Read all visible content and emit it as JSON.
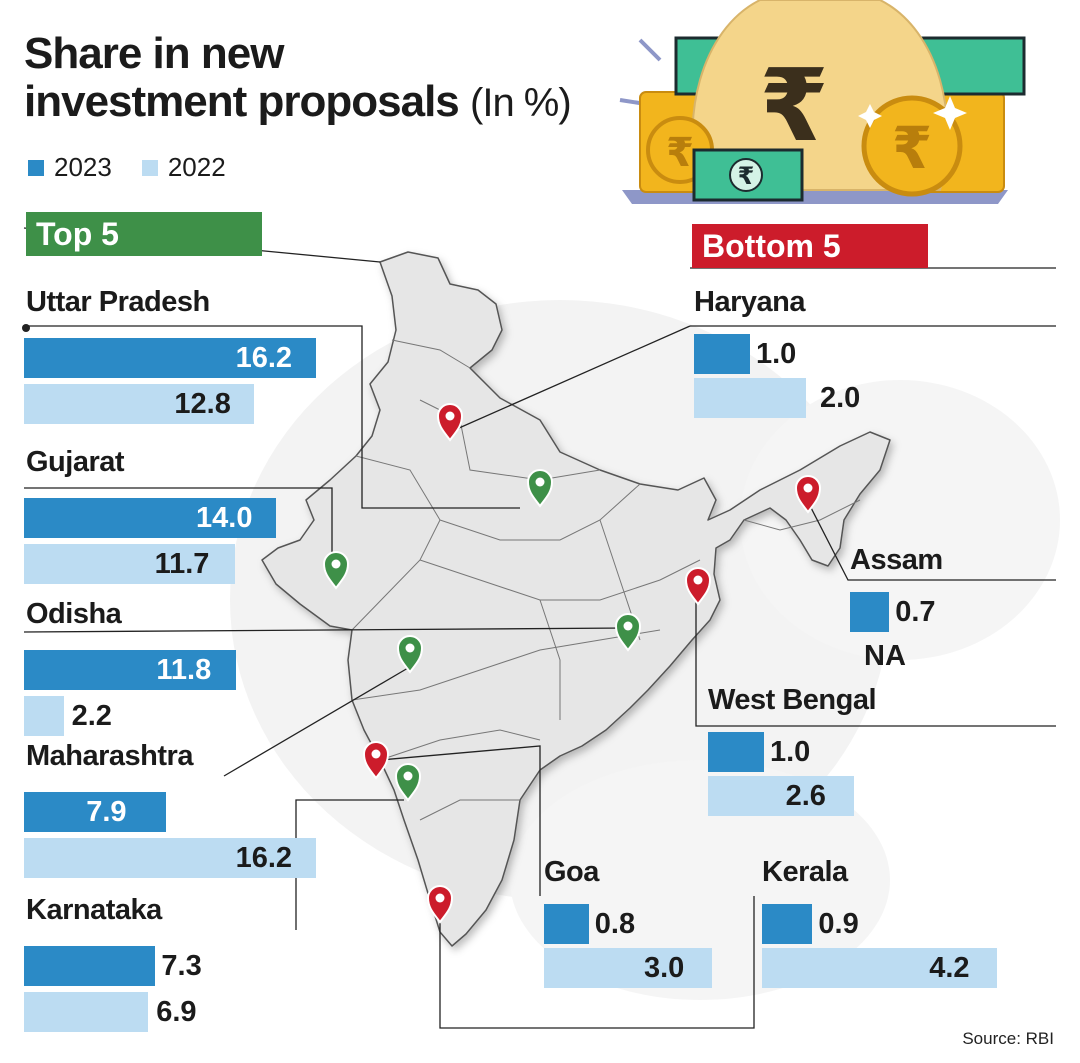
{
  "title_line1": "Share in new",
  "title_line2": "investment proposals",
  "title_unit": "(In %)",
  "legend": [
    {
      "label": "2023",
      "color": "#2b8ac6"
    },
    {
      "label": "2022",
      "color": "#bcdcf2"
    }
  ],
  "top_label": "Top 5",
  "bottom_label": "Bottom 5",
  "source": "Source: RBI",
  "colors": {
    "top": "#3e9048",
    "bottom": "#cc1c2b",
    "y2023": "#2b8ac6",
    "y2022": "#bcdcf2"
  },
  "chart_data": {
    "type": "bar",
    "title": "Share in new investment proposals (In %)",
    "series": [
      {
        "name": "2023"
      },
      {
        "name": "2022"
      }
    ],
    "top5": [
      {
        "state": "Uttar Pradesh",
        "v2023": 16.2,
        "v2022": 12.8
      },
      {
        "state": "Gujarat",
        "v2023": 14.0,
        "v2022": 11.7
      },
      {
        "state": "Odisha",
        "v2023": 11.8,
        "v2022": 2.2
      },
      {
        "state": "Maharashtra",
        "v2023": 7.9,
        "v2022": 16.2
      },
      {
        "state": "Karnataka",
        "v2023": 7.3,
        "v2022": 6.9
      }
    ],
    "bottom5": [
      {
        "state": "Haryana",
        "v2023": 1.0,
        "v2022": 2.0
      },
      {
        "state": "Assam",
        "v2023": 0.7,
        "v2022": "NA"
      },
      {
        "state": "West Bengal",
        "v2023": 1.0,
        "v2022": 2.6
      },
      {
        "state": "Goa",
        "v2023": 0.8,
        "v2022": 3.0
      },
      {
        "state": "Kerala",
        "v2023": 0.9,
        "v2022": 4.2
      }
    ]
  }
}
